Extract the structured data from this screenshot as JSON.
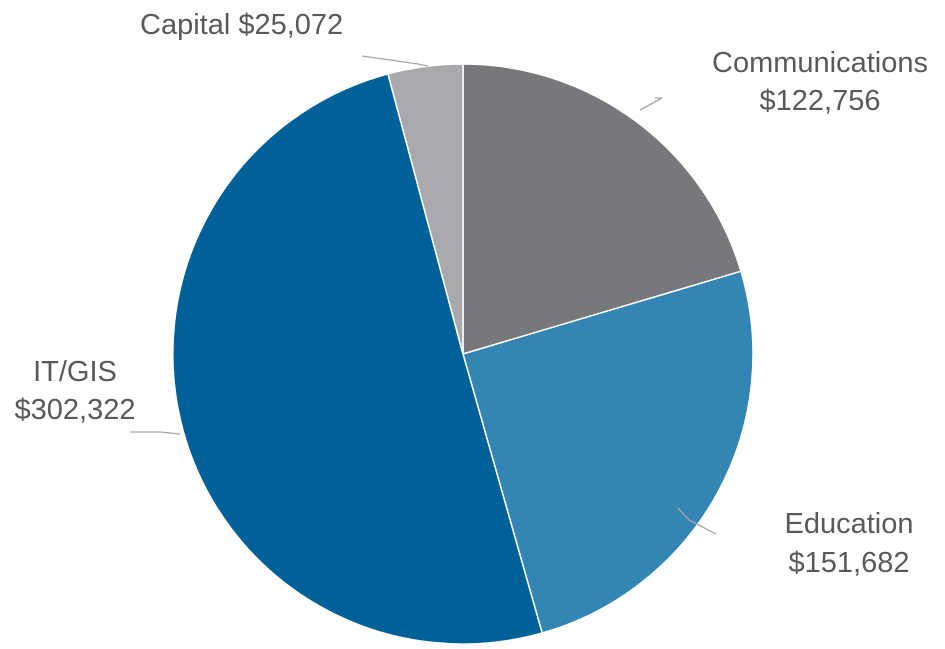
{
  "chart_data": {
    "type": "pie",
    "title": "",
    "start": "12 o'clock",
    "direction": "clockwise",
    "slices": [
      {
        "label": "Communications",
        "value": 122756,
        "value_label": "$122,756",
        "color": "#77787b"
      },
      {
        "label": "Education",
        "value": 151682,
        "value_label": "$151,682",
        "color": "#3385b3"
      },
      {
        "label": "IT/GIS",
        "value": 302322,
        "value_label": "$302,322",
        "color": "#006098"
      },
      {
        "label": "Capital",
        "value": 25072,
        "value_label": "$25,072",
        "color": "#a7a9ac"
      }
    ]
  }
}
